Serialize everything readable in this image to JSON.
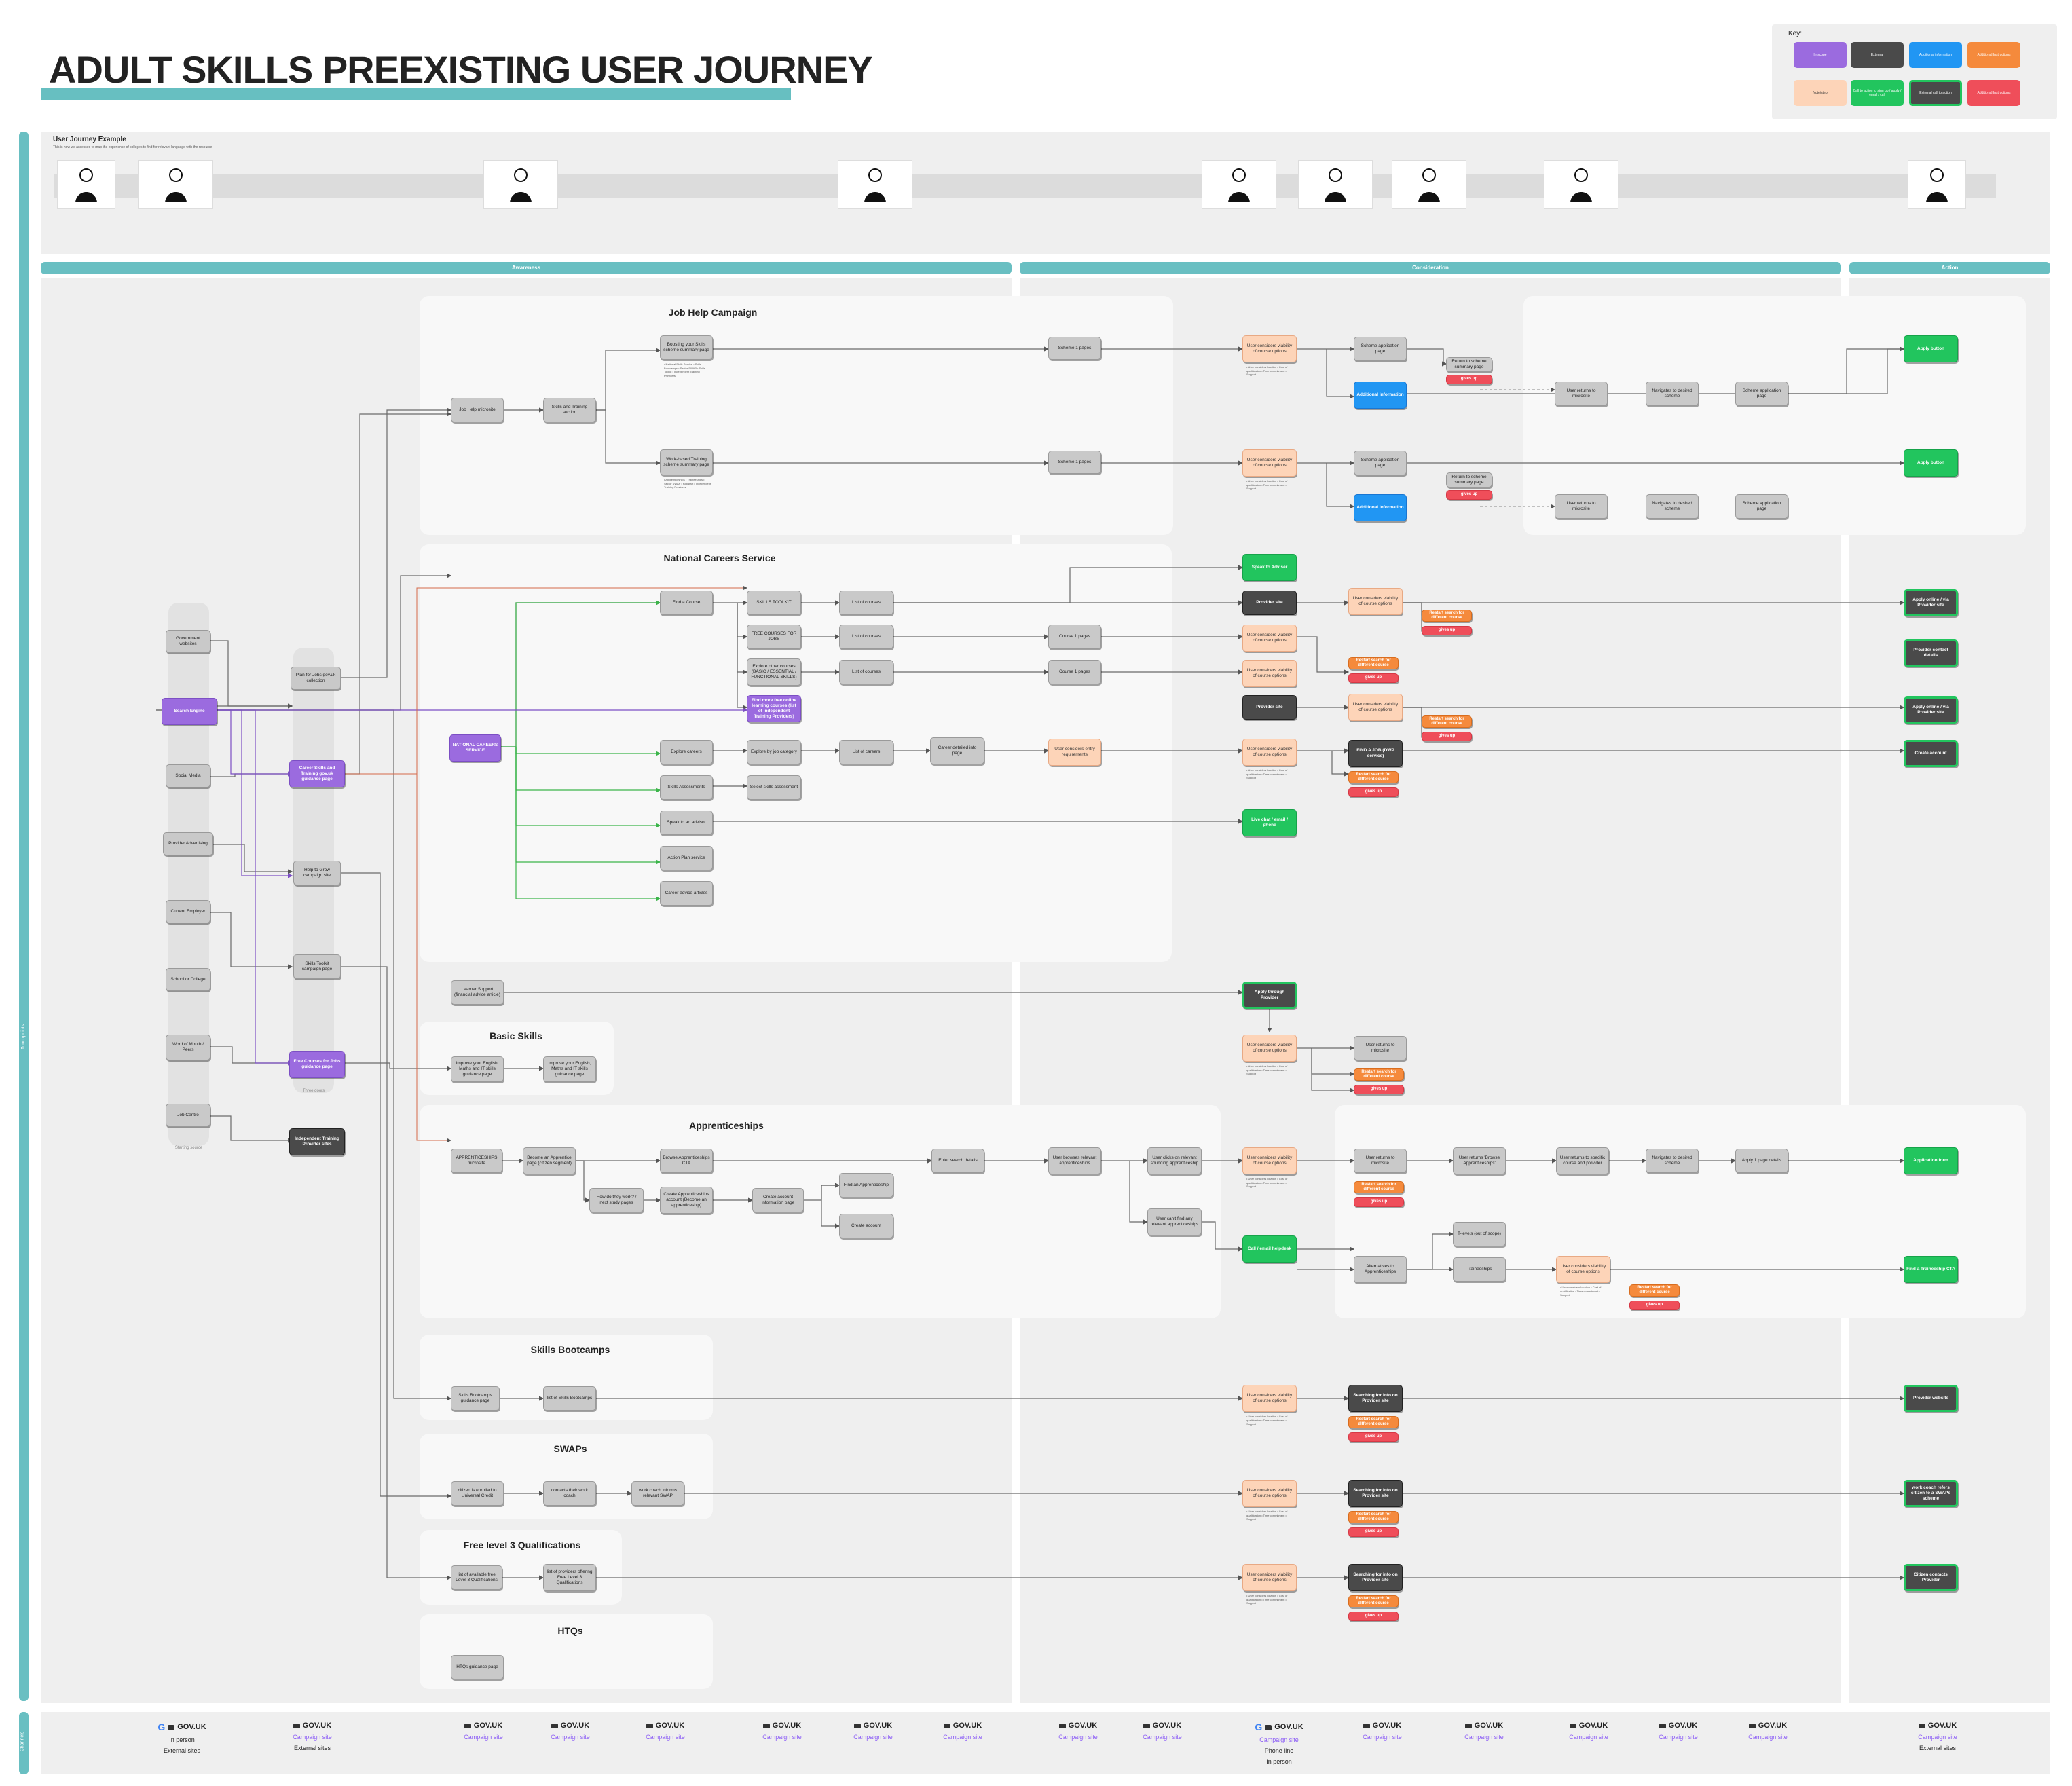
{
  "title": "ADULT SKILLS PREEXISTING USER JOURNEY",
  "key": {
    "label": "Key:",
    "items": [
      {
        "label": "In-scope",
        "color": "#9b6bdf"
      },
      {
        "label": "External",
        "color": "#4a4a4a"
      },
      {
        "label": "Additional information",
        "color": "#2196f3"
      },
      {
        "label": "Additional Instructions",
        "color": "#f58a3c"
      },
      {
        "label": "Note/step",
        "color": "#fdd4b8"
      },
      {
        "label": "Call to action to sign up / apply / email / call",
        "color": "#22c55e"
      },
      {
        "label": "External call to action",
        "color": "#4a4a4a"
      },
      {
        "label": "Additional Instructions",
        "color": "#ef4e5a"
      }
    ]
  },
  "sidebar": {
    "touchpoints_label": "Touchpoints",
    "channels_label": "Channels"
  },
  "user_journey": {
    "title": "User Journey Example",
    "subtitle": "This is how we assessed to map the experience of colleges to find for relevant language with the resource"
  },
  "stages": [
    "Awareness",
    "Consideration",
    "Action"
  ],
  "lanes": {
    "job_help": "Job Help Campaign",
    "ncs": "National Careers Service",
    "basic": "Basic Skills",
    "appr": "Apprenticeships",
    "boot": "Skills Bootcamps",
    "swaps": "SWAPs",
    "l3": "Free level 3 Qualifications",
    "htq": "HTQs"
  },
  "starting_sources_label": "Starting source",
  "three_doors_label": "Three doors",
  "nodes": {
    "gov_websites": "Government websites",
    "search_engine": "Search Engine",
    "social_media": "Social Media",
    "provider_adv": "Provider Advertising",
    "current_employer": "Current Employer",
    "school_college": "School or College",
    "word_mouth": "Word of Mouth / Peers",
    "job_centre": "Job Centre",
    "plan_jobs": "Plan for Jobs gov.uk collection",
    "career_skills": "Career Skills and Training gov.uk guidance page",
    "help_to_grow": "Help to Grow campaign site",
    "skills_toolkit": "Skills Toolkit campaign page",
    "free_courses": "Free Courses for Jobs guidance page",
    "independent": "Independent Training Provider sites",
    "job_help_microsite": "Job Help microsite",
    "skills_training_section": "Skills and Training section",
    "boosting_skills": "Boosting your Skills scheme summary page",
    "boosting_list": "• National Skills Service • Skills Bootcamps • Sector SWAP • Skills Toolkit • Independent Training Providers",
    "work_based": "Work-based Training scheme summary page",
    "work_based_list": "• Apprenticeships • Traineeships • Sector SWAP • Kickstart • Independent Training Providers",
    "scheme_pages": "Scheme 1 pages",
    "user_considers": "User considers viability of course options",
    "considers_list": "• User considers location • Cost of qualification • Time commitment • Support",
    "scheme_app": "Scheme application page",
    "additional_info": "Additional information",
    "return_summary": "Return to scheme summary page",
    "gives_up": "gives up",
    "user_returns_microsite": "User returns to microsite",
    "navigate_desired": "Navigates to desired scheme",
    "apply_button": "Apply button",
    "ncs_service": "NATIONAL CAREERS SERVICE",
    "find_course": "Find a Course",
    "skills_toolkit_ncs": "SKILLS TOOLKIT",
    "free_courses_ncs": "FREE COURSES FOR JOBS",
    "explore_other": "Explore other courses (BASIC / ESSENTIAL / FUNCTIONAL SKILLS)",
    "find_more": "Find more free online learning courses (list of Independent Training Providers)",
    "list_courses": "List of courses",
    "course_pages": "Course 1 pages",
    "speak_adviser": "Speak to Adviser",
    "provider_site": "Provider site",
    "restart_search": "Restart search for different course",
    "apply_online": "Apply online / via Provider site",
    "provider_contact": "Provider contact details",
    "explore_careers": "Explore careers",
    "explore_job_category": "Explore by job category",
    "list_careers": "List of careers",
    "career_detailed": "Career detailed info page",
    "entry_requirements": "User considers entry requirements",
    "find_a_job": "FIND A JOB (DWP service)",
    "create_account": "Create account",
    "skills_assessments": "Skills Assessments",
    "select_skills": "Select skills assessment",
    "speak_advisor": "Speak to an advisor",
    "live_chat": "Live chat / email / phone",
    "action_plan": "Action Plan service",
    "career_advice": "Career advice articles",
    "learner_support": "Learner Support (financial advice article)",
    "apply_provider": "Apply through Provider",
    "improve_english": "Improve your English, Maths and IT skills guidance page",
    "improve_english2": "Improve your English, Maths and IT skills guidance page",
    "appr_microsite": "APPRENTICESHIPS microsite",
    "become_appr": "Become an Apprentice page (citizen segment)",
    "how_work": "How do they work? / next study pages",
    "browse_appr": "Browse Apprenticeships CTA",
    "create_appr_account": "Create Apprenticeships account (Become an apprenticeship)",
    "create_account_info": "Create account information page",
    "find_appr": "Find an Apprenticeship",
    "create_account2": "Create account",
    "enter_search": "Enter search details",
    "user_browses": "User browses relevant apprenticeships",
    "user_clicks": "User clicks on relevant sounding apprenticeship",
    "cant_find": "User can't find any relevant apprenticeships",
    "call_email_helpdesk": "Call / email helpdesk",
    "user_returns_browse": "User returns 'Browse Apprenticeships'",
    "user_returns_specific": "User returns to specific course and provider",
    "navigate_desired2": "Navigates to desired scheme",
    "apply_details": "Apply 1 page details",
    "application_form": "Application form",
    "alternatives": "Alternatives to Apprenticeships",
    "traineeships": "Traineeships",
    "levels_scope": "T-levels (out of scope)",
    "find_traineeship": "Find a Traineeship CTA",
    "bootcamp_guidance": "Skills Bootcamps guidance page",
    "list_bootcamps": "list of Skills Bootcamps",
    "searching_provider": "Searching for info on Provider site",
    "provider_website": "Provider website",
    "citizen_enrolled": "citizen is enrolled to Universal Credit",
    "contacts_work_coach": "contacts their work coach",
    "work_coach_informs": "work coach informs relevant SWAP",
    "work_coach_refers": "work coach refers citizen to a SWAPs scheme",
    "list_l3": "list of available free Level 3 Qualifications",
    "list_providers": "list of providers offering Free Level 3 Qualifications",
    "citizen_contacts": "Citizen contacts Provider",
    "htq_guidance": "HTQs guidance page"
  },
  "footer": [
    {
      "logo": "GOV.UK",
      "google": true,
      "lines": [
        "In person",
        "External sites"
      ]
    },
    {
      "logo": "GOV.UK",
      "lines": [
        "Campaign site",
        "External sites"
      ]
    },
    {
      "logo": "GOV.UK",
      "lines": [
        "Campaign site"
      ]
    },
    {
      "logo": "GOV.UK",
      "lines": [
        "Campaign site"
      ]
    },
    {
      "logo": "GOV.UK",
      "lines": [
        "Campaign site"
      ]
    },
    {
      "logo": "GOV.UK",
      "lines": [
        "Campaign site"
      ]
    },
    {
      "logo": "GOV.UK",
      "lines": [
        "Campaign site"
      ]
    },
    {
      "logo": "GOV.UK",
      "lines": [
        "Campaign site"
      ]
    },
    {
      "logo": "GOV.UK",
      "lines": [
        "Campaign site"
      ]
    },
    {
      "logo": "GOV.UK",
      "lines": [
        "Campaign site"
      ]
    },
    {
      "logo": "GOV.UK",
      "google": true,
      "lines": [
        "Campaign site",
        "Phone line",
        "In person"
      ]
    },
    {
      "logo": "GOV.UK",
      "lines": [
        "Campaign site"
      ]
    },
    {
      "logo": "GOV.UK",
      "lines": [
        "Campaign site"
      ]
    },
    {
      "logo": "GOV.UK",
      "lines": [
        "Campaign site"
      ]
    },
    {
      "logo": "GOV.UK",
      "lines": [
        "Campaign site"
      ]
    },
    {
      "logo": "GOV.UK",
      "lines": [
        "Campaign site"
      ]
    },
    {
      "logo": "GOV.UK",
      "lines": [
        "Campaign site",
        "External sites"
      ]
    }
  ]
}
